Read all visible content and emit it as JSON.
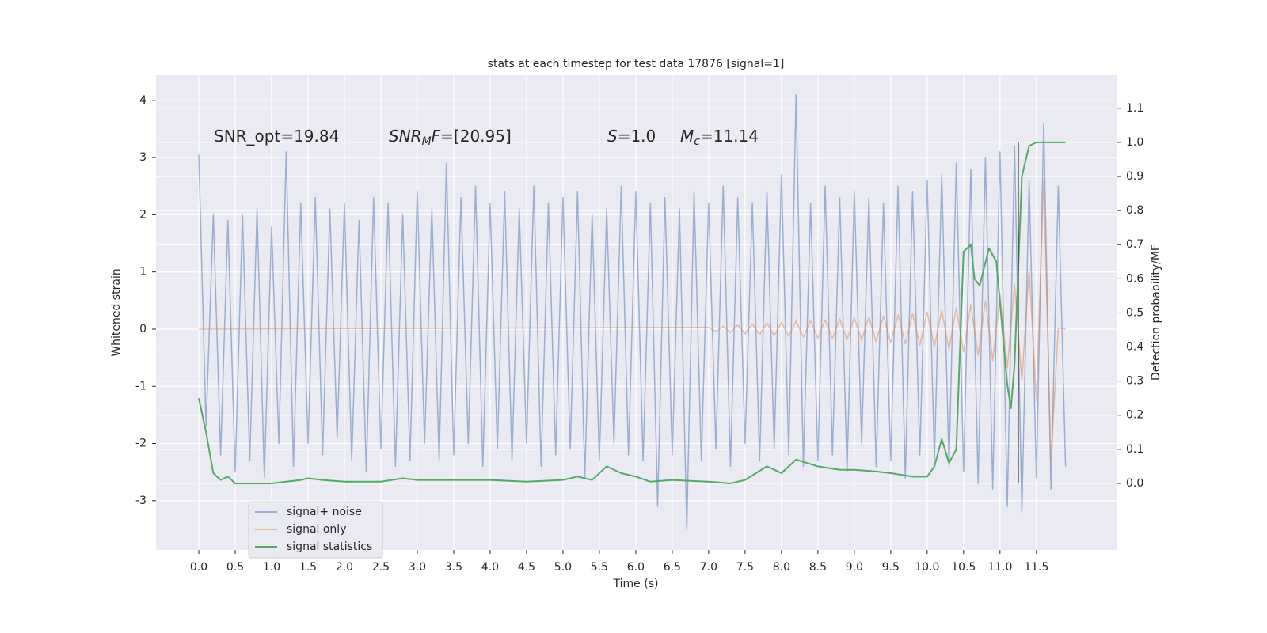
{
  "chart_data": {
    "type": "line",
    "title": "stats at each timestep for test data 17876 [signal=1]",
    "x_label": "Time (s)",
    "y_label": "Whitened strain",
    "y2_label": "Detection probability/MF",
    "xlim": [
      -0.587,
      12.6
    ],
    "ylim": [
      -3.86,
      4.44
    ],
    "y2lim": [
      -0.195,
      1.197
    ],
    "xticks": [
      {
        "value": 0,
        "label": "0.0"
      },
      0.5,
      {
        "value": 1,
        "label": "1.0"
      },
      1.5,
      {
        "value": 2,
        "label": "2.0"
      },
      2.5,
      {
        "value": 3,
        "label": "3.0"
      },
      3.5,
      {
        "value": 4,
        "label": "4.0"
      },
      4.5,
      {
        "value": 5,
        "label": "5.0"
      },
      5.5,
      {
        "value": 6,
        "label": "6.0"
      },
      6.5,
      {
        "value": 7,
        "label": "7.0"
      },
      7.5,
      {
        "value": 8,
        "label": "8.0"
      },
      8.5,
      {
        "value": 9,
        "label": "9.0"
      },
      9.5,
      {
        "value": 10,
        "label": "10.0"
      },
      10.5,
      {
        "value": 11,
        "label": "11.0"
      },
      11.5
    ],
    "yticks": [
      -3,
      -2,
      -1,
      0,
      1,
      2,
      3,
      4
    ],
    "y2ticks": [
      {
        "value": 0,
        "label": "0.0"
      },
      0.1,
      0.2,
      0.3,
      0.4,
      0.5,
      0.6,
      0.7,
      0.8,
      0.9,
      {
        "value": 1,
        "label": "1.0"
      },
      1.1
    ],
    "grid": true,
    "legend": "lower left",
    "series": [
      {
        "name": "signal+ noise",
        "color": "#4c72b0",
        "opacity": 0.5,
        "x": [
          0.0,
          0.1,
          0.2,
          0.3,
          0.4,
          0.5,
          0.6,
          0.7,
          0.8,
          0.9,
          1.0,
          1.1,
          1.2,
          1.3,
          1.4,
          1.5,
          1.6,
          1.7,
          1.8,
          1.9,
          2.0,
          2.1,
          2.2,
          2.3,
          2.4,
          2.5,
          2.6,
          2.7,
          2.8,
          2.9,
          3.0,
          3.1,
          3.2,
          3.3,
          3.4,
          3.5,
          3.6,
          3.7,
          3.8,
          3.9,
          4.0,
          4.1,
          4.2,
          4.3,
          4.4,
          4.5,
          4.6,
          4.7,
          4.8,
          4.9,
          5.0,
          5.1,
          5.2,
          5.3,
          5.4,
          5.5,
          5.6,
          5.7,
          5.8,
          5.9,
          6.0,
          6.1,
          6.2,
          6.3,
          6.4,
          6.5,
          6.6,
          6.7,
          6.8,
          6.9,
          7.0,
          7.1,
          7.2,
          7.3,
          7.4,
          7.5,
          7.6,
          7.7,
          7.8,
          7.9,
          8.0,
          8.1,
          8.2,
          8.3,
          8.4,
          8.5,
          8.6,
          8.7,
          8.8,
          8.9,
          9.0,
          9.1,
          9.2,
          9.3,
          9.4,
          9.5,
          9.6,
          9.7,
          9.8,
          9.9,
          10.0,
          10.1,
          10.2,
          10.3,
          10.4,
          10.5,
          10.6,
          10.7,
          10.8,
          10.9,
          11.0,
          11.1,
          11.2,
          11.3,
          11.4,
          11.5,
          11.6,
          11.7,
          11.8,
          11.9
        ],
        "values": [
          3.05,
          -1.7,
          2.0,
          -2.2,
          1.9,
          -2.5,
          2.0,
          -2.3,
          2.1,
          -2.6,
          1.8,
          -2.0,
          3.1,
          -2.4,
          2.2,
          -2.0,
          2.3,
          -2.2,
          2.1,
          -1.9,
          2.2,
          -2.3,
          1.9,
          -2.5,
          2.3,
          -2.1,
          2.2,
          -2.4,
          2.0,
          -2.3,
          2.4,
          -2.0,
          2.1,
          -2.3,
          2.9,
          -2.2,
          2.3,
          -2.0,
          2.5,
          -2.4,
          2.2,
          -2.1,
          2.4,
          -2.3,
          2.1,
          -2.0,
          2.5,
          -2.4,
          2.2,
          -2.2,
          2.3,
          -2.1,
          2.4,
          -2.6,
          2.0,
          -2.3,
          2.1,
          -2.0,
          2.5,
          -2.2,
          2.4,
          -2.3,
          2.2,
          -3.1,
          2.3,
          -2.2,
          2.1,
          -3.5,
          2.4,
          -2.3,
          2.2,
          -2.1,
          2.5,
          -2.4,
          2.3,
          -2.0,
          2.2,
          -2.3,
          2.4,
          -2.1,
          2.7,
          -2.2,
          4.1,
          -2.4,
          2.2,
          -2.3,
          2.5,
          -2.2,
          2.3,
          -2.5,
          2.4,
          -2.0,
          2.3,
          -2.4,
          2.2,
          -2.3,
          2.5,
          -2.6,
          2.4,
          -2.2,
          2.6,
          -2.3,
          2.7,
          -2.4,
          2.9,
          -2.5,
          2.8,
          -2.7,
          3.0,
          -2.8,
          3.1,
          -3.1,
          3.2,
          -3.2,
          2.6,
          -2.6,
          3.6,
          -2.8,
          2.5,
          -2.4
        ]
      },
      {
        "name": "signal only",
        "color": "#dd8452",
        "opacity": 0.5,
        "x": [
          0.0,
          7.0,
          7.1,
          7.2,
          7.3,
          7.4,
          7.5,
          7.6,
          7.7,
          7.8,
          7.9,
          8.0,
          8.1,
          8.2,
          8.3,
          8.4,
          8.5,
          8.6,
          8.7,
          8.8,
          8.9,
          9.0,
          9.1,
          9.2,
          9.3,
          9.4,
          9.5,
          9.6,
          9.7,
          9.8,
          9.9,
          10.0,
          10.1,
          10.2,
          10.3,
          10.4,
          10.5,
          10.6,
          10.7,
          10.8,
          10.9,
          11.0,
          11.1,
          11.2,
          11.3,
          11.4,
          11.5,
          11.6,
          11.7,
          11.8,
          11.9
        ],
        "values": [
          0,
          0.03,
          -0.04,
          0.05,
          -0.06,
          0.07,
          -0.08,
          0.09,
          -0.1,
          0.11,
          -0.12,
          0.12,
          -0.13,
          0.14,
          -0.14,
          0.15,
          -0.16,
          0.16,
          -0.17,
          0.18,
          -0.19,
          0.2,
          -0.2,
          0.21,
          -0.22,
          0.23,
          -0.24,
          0.25,
          -0.26,
          0.27,
          -0.28,
          0.3,
          -0.31,
          0.33,
          -0.35,
          0.37,
          -0.4,
          0.43,
          -0.46,
          0.5,
          -0.55,
          0.6,
          -0.68,
          0.78,
          -0.9,
          1.05,
          -1.25,
          2.6,
          -2.3,
          0.02,
          0
        ]
      },
      {
        "name": "signal statistics",
        "color": "#55a868",
        "opacity": 1,
        "axis": "y2",
        "x": [
          0.0,
          0.1,
          0.2,
          0.3,
          0.4,
          0.5,
          0.6,
          0.8,
          1.0,
          1.2,
          1.4,
          1.5,
          1.7,
          2.0,
          2.5,
          2.8,
          3.0,
          3.5,
          4.0,
          4.5,
          5.0,
          5.2,
          5.4,
          5.6,
          5.8,
          6.0,
          6.2,
          6.5,
          7.0,
          7.3,
          7.5,
          7.8,
          8.0,
          8.2,
          8.5,
          8.8,
          9.0,
          9.3,
          9.5,
          9.8,
          10.0,
          10.1,
          10.2,
          10.3,
          10.4,
          10.5,
          10.6,
          10.65,
          10.72,
          10.85,
          10.95,
          11.1,
          11.15,
          11.2,
          11.3,
          11.4,
          11.5,
          11.7,
          11.9
        ],
        "values": [
          0.25,
          0.15,
          0.03,
          0.01,
          0.02,
          0.0,
          0.0,
          0.0,
          0.0,
          0.005,
          0.01,
          0.015,
          0.01,
          0.005,
          0.005,
          0.015,
          0.01,
          0.01,
          0.01,
          0.005,
          0.01,
          0.02,
          0.01,
          0.05,
          0.03,
          0.02,
          0.005,
          0.01,
          0.005,
          0.0,
          0.01,
          0.05,
          0.03,
          0.07,
          0.05,
          0.04,
          0.04,
          0.035,
          0.03,
          0.02,
          0.02,
          0.05,
          0.13,
          0.06,
          0.1,
          0.68,
          0.7,
          0.6,
          0.58,
          0.69,
          0.65,
          0.29,
          0.22,
          0.35,
          0.9,
          0.99,
          1.0,
          1.0,
          1.0
        ]
      }
    ],
    "vlines": [
      {
        "x": 11.25,
        "ymin": 0,
        "ymax": 1,
        "axis": "y2",
        "color": "#333333"
      }
    ],
    "annotations": [
      {
        "parts": [
          {
            "text": "SNR_opt=19.84",
            "style": "normal"
          }
        ]
      },
      {
        "parts": [
          {
            "text": "SNR",
            "style": "italic"
          },
          {
            "text": "M",
            "style": "sub"
          },
          {
            "text": "F",
            "style": "italic"
          },
          {
            "text": "=[20.95]",
            "style": "normal"
          }
        ]
      },
      {
        "parts": [
          {
            "text": "S",
            "style": "italic"
          },
          {
            "text": "=1.0",
            "style": "normal"
          }
        ]
      },
      {
        "parts": [
          {
            "text": "M",
            "style": "italic"
          },
          {
            "text": "c",
            "style": "sub"
          },
          {
            "text": "=11.14",
            "style": "normal"
          }
        ]
      }
    ]
  }
}
